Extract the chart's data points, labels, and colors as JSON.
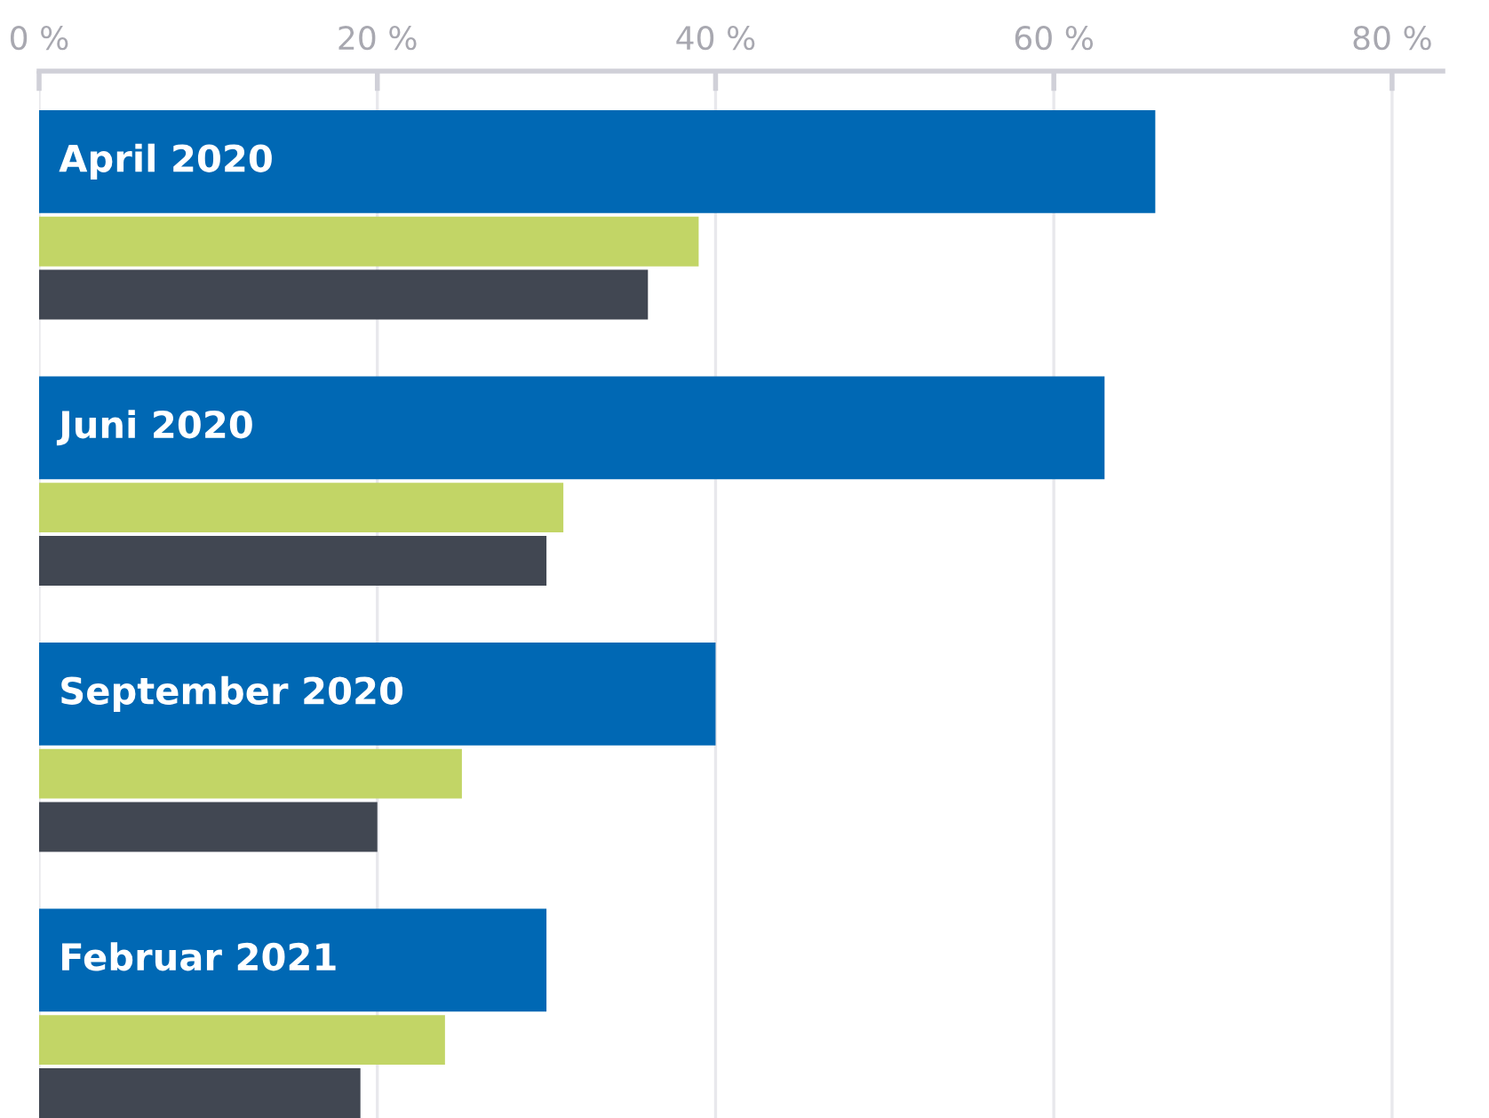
{
  "chart_data": {
    "type": "bar",
    "orientation": "horizontal",
    "categories": [
      "April 2020",
      "Juni 2020",
      "September 2020",
      "Februar 2021"
    ],
    "series": [
      {
        "color": "#0068b4",
        "values": [
          66,
          63,
          40,
          30
        ]
      },
      {
        "color": "#c2d566",
        "values": [
          39,
          31,
          25,
          24
        ]
      },
      {
        "color": "#414752",
        "values": [
          36,
          30,
          20,
          19
        ]
      }
    ],
    "xlim": [
      0,
      83
    ],
    "xticks": [
      {
        "value": 0,
        "label": "0 %"
      },
      {
        "value": 20,
        "label": "20 %"
      },
      {
        "value": 40,
        "label": "40 %"
      },
      {
        "value": 60,
        "label": "60 %"
      },
      {
        "value": 80,
        "label": "80 %"
      }
    ],
    "grid": "x"
  }
}
